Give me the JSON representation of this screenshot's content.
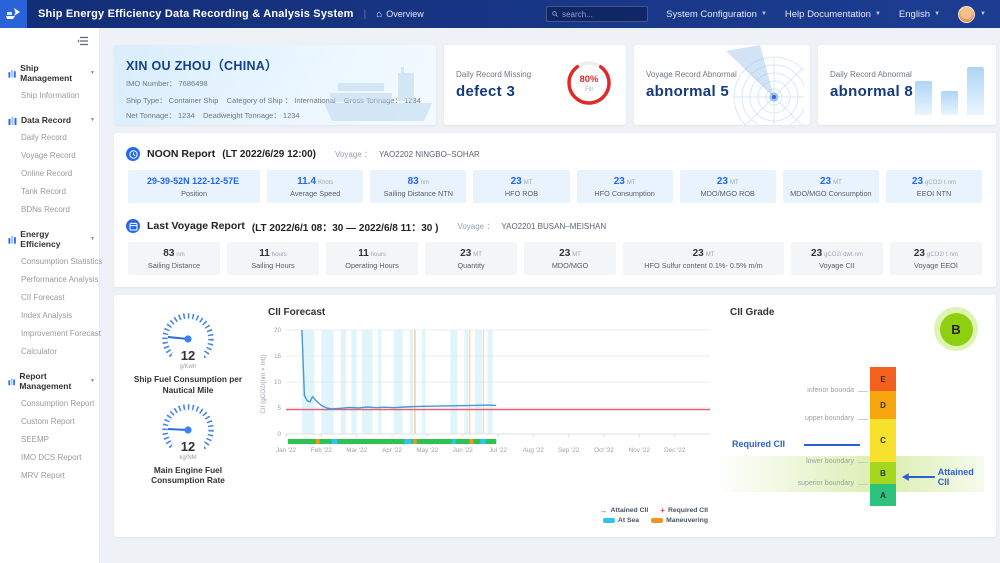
{
  "colors": {
    "accent": "#2468f2",
    "navy": "#143a7d",
    "danger": "#e02a2a",
    "topbar": "#16327f"
  },
  "topbar": {
    "title": "Ship Energy Efficiency Data Recording & Analysis System",
    "overview": "Overview",
    "search_placeholder": "search...",
    "menu_system": "System Configuration",
    "menu_help": "Help Documentation",
    "menu_lang": "English"
  },
  "sidebar": {
    "sections": [
      {
        "label": "Ship Management",
        "items": [
          "Ship Information"
        ]
      },
      {
        "label": "Data Record",
        "items": [
          "Daily Record",
          "Voyage Record",
          "Online Record",
          "Tank Record",
          "BDNs Record"
        ]
      },
      {
        "label": "Energy Efficiency",
        "items": [
          "Consumption Statistics",
          "Performance Analysis",
          "CII Forecast",
          "Index Analysis",
          "Improvement Forecast",
          "Calculator"
        ]
      },
      {
        "label": "Report Management",
        "items": [
          "Consumption Report",
          "Custom Report",
          "SEEMP",
          "IMO DCS Report",
          "MRV Report"
        ]
      }
    ]
  },
  "ship": {
    "name": "XIN OU ZHOU（CHINA）",
    "line1": "IMO Number： 7686498",
    "line2": "Ship Type： Container Ship    Category of Ship ： International    Gross Tonnage： 1234",
    "line3": "Net Tonnage： 1234    Deadweight Tonnage： 1234"
  },
  "cards": {
    "missing": {
      "label": "Daily Record Missing",
      "value": "defect 3",
      "ring_pct": "80%",
      "ring_caption": "Fill"
    },
    "voyage_abnormal": {
      "label": "Voyage Record  Abnormal",
      "value": "abnormal 5"
    },
    "daily_abnormal": {
      "label": "Daily Record  Abnormal",
      "value": "abnormal 8"
    }
  },
  "noon": {
    "title": "NOON Report",
    "time": "(LT 2022/6/29 12:00)",
    "voyage_label": "Voyage ：",
    "voyage": "YAO2202 NINGBO–SOHAR",
    "tiles": [
      {
        "value": "29-39-52N 122-12-57E",
        "unit": "",
        "label": "Position"
      },
      {
        "value": "11.4",
        "unit": "Knots",
        "label": "Average Speed"
      },
      {
        "value": "83",
        "unit": "nm",
        "label": "Sailing Distance NTN"
      },
      {
        "value": "23",
        "unit": "MT",
        "label": "HFO ROB"
      },
      {
        "value": "23",
        "unit": "MT",
        "label": "HFO Consumption"
      },
      {
        "value": "23",
        "unit": "MT",
        "label": "MDO/MGO ROB"
      },
      {
        "value": "23",
        "unit": "MT",
        "label": "MDO/MGO Consumption"
      },
      {
        "value": "23",
        "unit": "gCO2/ t·nm",
        "label": "EEOI NTN"
      }
    ]
  },
  "voyage_report": {
    "title": "Last Voyage Report",
    "time": "(LT 2022/6/1 08：30 — 2022/6/8 11：30 )",
    "voyage_label": "Voyage ：",
    "voyage": "YAO2201 BUSAN–MEISHAN",
    "tiles": [
      {
        "value": "83",
        "unit": "nm",
        "label": "Sailing Distance"
      },
      {
        "value": "11",
        "unit": "hours",
        "label": "Sailing Hours"
      },
      {
        "value": "11",
        "unit": "hours",
        "label": "Operating Hours"
      },
      {
        "value": "23",
        "unit": "MT",
        "label": "Quantity"
      },
      {
        "value": "23",
        "unit": "MT",
        "label": "MDO/MGO"
      },
      {
        "value": "23",
        "unit": "MT",
        "label": "HFO Sulfur content 0.1%- 0.5% m/m"
      },
      {
        "value": "23",
        "unit": "gCO2/ dwt·nm",
        "label": "Voyage CII"
      },
      {
        "value": "23",
        "unit": "gCO2/ t·nm",
        "label": "Voyage EEOI"
      }
    ]
  },
  "gauges": [
    {
      "value": "12",
      "unit": "g/Kwh",
      "label": "Ship Fuel Consumption per Nautical Mile"
    },
    {
      "value": "12",
      "unit": "kg/NM",
      "label": "Main Engine Fuel Consumption Rate"
    }
  ],
  "chart_data": [
    {
      "type": "line",
      "title": "CII Forecast",
      "ylabel": "CII (gCO2/(nm × mt))",
      "ylim": [
        0,
        20
      ],
      "yticks": [
        0,
        5,
        10,
        15,
        20
      ],
      "x_months": [
        "Jan '22",
        "Feb '22",
        "Mar '22",
        "Apr '22",
        "May '22",
        "Jun '22",
        "Jul '22",
        "Aug '22",
        "Sep '22",
        "Oct '22",
        "Nov '22",
        "Dec '22"
      ],
      "series": [
        {
          "name": "Attained CII",
          "color": "#4a97d8",
          "points": [
            [
              0.45,
              20
            ],
            [
              0.52,
              7.4
            ],
            [
              0.6,
              6.4
            ],
            [
              0.68,
              6.2
            ],
            [
              0.75,
              7.2
            ],
            [
              0.85,
              6.4
            ],
            [
              1.0,
              5.5
            ],
            [
              1.15,
              5.0
            ],
            [
              1.3,
              4.8
            ],
            [
              1.55,
              4.95
            ],
            [
              1.8,
              5.1
            ],
            [
              2.05,
              5.0
            ],
            [
              2.3,
              5.2
            ],
            [
              2.55,
              5.05
            ],
            [
              2.8,
              5.15
            ],
            [
              3.05,
              5.05
            ],
            [
              3.35,
              5.2
            ],
            [
              3.7,
              5.3
            ],
            [
              4.1,
              5.35
            ],
            [
              4.5,
              5.4
            ],
            [
              4.9,
              5.45
            ],
            [
              5.3,
              5.5
            ],
            [
              5.7,
              5.55
            ],
            [
              5.95,
              5.5
            ]
          ]
        },
        {
          "name": "Required CII",
          "color": "#ef5b74",
          "value": 4.7
        }
      ],
      "bands": {
        "at_sea": {
          "color": "#c9ecf9",
          "ranges": [
            [
              0.45,
              0.8
            ],
            [
              1.0,
              1.35
            ],
            [
              1.55,
              1.7
            ],
            [
              1.85,
              2.0
            ],
            [
              2.15,
              2.45
            ],
            [
              2.6,
              2.7
            ],
            [
              3.05,
              3.3
            ],
            [
              3.5,
              3.6
            ],
            [
              3.85,
              3.95
            ],
            [
              4.65,
              4.85
            ],
            [
              5.05,
              5.15
            ],
            [
              5.35,
              5.55
            ],
            [
              5.7,
              5.85
            ]
          ]
        },
        "maneuvering": {
          "color": "#f6c98f",
          "ranges": [
            [
              3.62,
              3.68
            ],
            [
              5.17,
              5.22
            ],
            [
              5.57,
              5.61
            ]
          ]
        }
      },
      "bottom_strip": {
        "base_color": "#2bc453",
        "range": [
          0.05,
          5.95
        ],
        "orange_segments": [
          [
            0.85,
            0.95
          ],
          [
            3.6,
            3.7
          ],
          [
            5.2,
            5.3
          ]
        ],
        "cyan_segments": [
          [
            1.3,
            1.45
          ],
          [
            3.35,
            3.55
          ],
          [
            4.7,
            4.8
          ],
          [
            5.5,
            5.65
          ]
        ]
      },
      "legend": [
        {
          "label": "Attained CII",
          "color": "#2f6fd2",
          "type": "line"
        },
        {
          "label": "Required CII",
          "color": "#e8485c",
          "type": "line"
        },
        {
          "label": "At Sea",
          "color": "#2fc4f3",
          "type": "swatch"
        },
        {
          "label": "Maneuvering",
          "color": "#f7941e",
          "type": "swatch"
        }
      ]
    },
    {
      "type": "grade-scale",
      "title": "CII Grade",
      "current_grade": "B",
      "segments": [
        {
          "grade": "E",
          "color": "#f2611d",
          "height": 24
        },
        {
          "grade": "D",
          "color": "#f7a60f",
          "height": 28
        },
        {
          "grade": "C",
          "color": "#f8e12c",
          "height": 43
        },
        {
          "grade": "B",
          "color": "#a4d71e",
          "height": 22
        },
        {
          "grade": "A",
          "color": "#2dc27d",
          "height": 22
        }
      ],
      "boundaries": [
        "inferior bounda",
        "upper boundary",
        "lower boundary",
        "superior boundary"
      ],
      "required_label": "Required CII",
      "attained_label": "Attained CII"
    }
  ]
}
